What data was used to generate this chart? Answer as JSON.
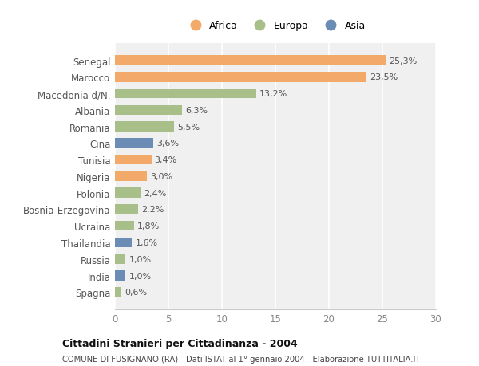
{
  "categories": [
    "Senegal",
    "Marocco",
    "Macedonia d/N.",
    "Albania",
    "Romania",
    "Cina",
    "Tunisia",
    "Nigeria",
    "Polonia",
    "Bosnia-Erzegovina",
    "Ucraina",
    "Thailandia",
    "Russia",
    "India",
    "Spagna"
  ],
  "values": [
    25.3,
    23.5,
    13.2,
    6.3,
    5.5,
    3.6,
    3.4,
    3.0,
    2.4,
    2.2,
    1.8,
    1.6,
    1.0,
    1.0,
    0.6
  ],
  "labels": [
    "25,3%",
    "23,5%",
    "13,2%",
    "6,3%",
    "5,5%",
    "3,6%",
    "3,4%",
    "3,0%",
    "2,4%",
    "2,2%",
    "1,8%",
    "1,6%",
    "1,0%",
    "1,0%",
    "0,6%"
  ],
  "colors": [
    "#F2A96A",
    "#F2A96A",
    "#A8BF8A",
    "#A8BF8A",
    "#A8BF8A",
    "#6B8DB5",
    "#F2A96A",
    "#F2A96A",
    "#A8BF8A",
    "#A8BF8A",
    "#A8BF8A",
    "#6B8DB5",
    "#A8BF8A",
    "#6B8DB5",
    "#A8BF8A"
  ],
  "legend_labels": [
    "Africa",
    "Europa",
    "Asia"
  ],
  "legend_colors": [
    "#F2A96A",
    "#A8BF8A",
    "#6B8DB5"
  ],
  "title": "Cittadini Stranieri per Cittadinanza - 2004",
  "subtitle": "COMUNE DI FUSIGNANO (RA) - Dati ISTAT al 1° gennaio 2004 - Elaborazione TUTTITALIA.IT",
  "xlim": [
    0,
    30
  ],
  "xticks": [
    0,
    5,
    10,
    15,
    20,
    25,
    30
  ],
  "background_color": "#ffffff",
  "plot_background": "#f0f0f0"
}
